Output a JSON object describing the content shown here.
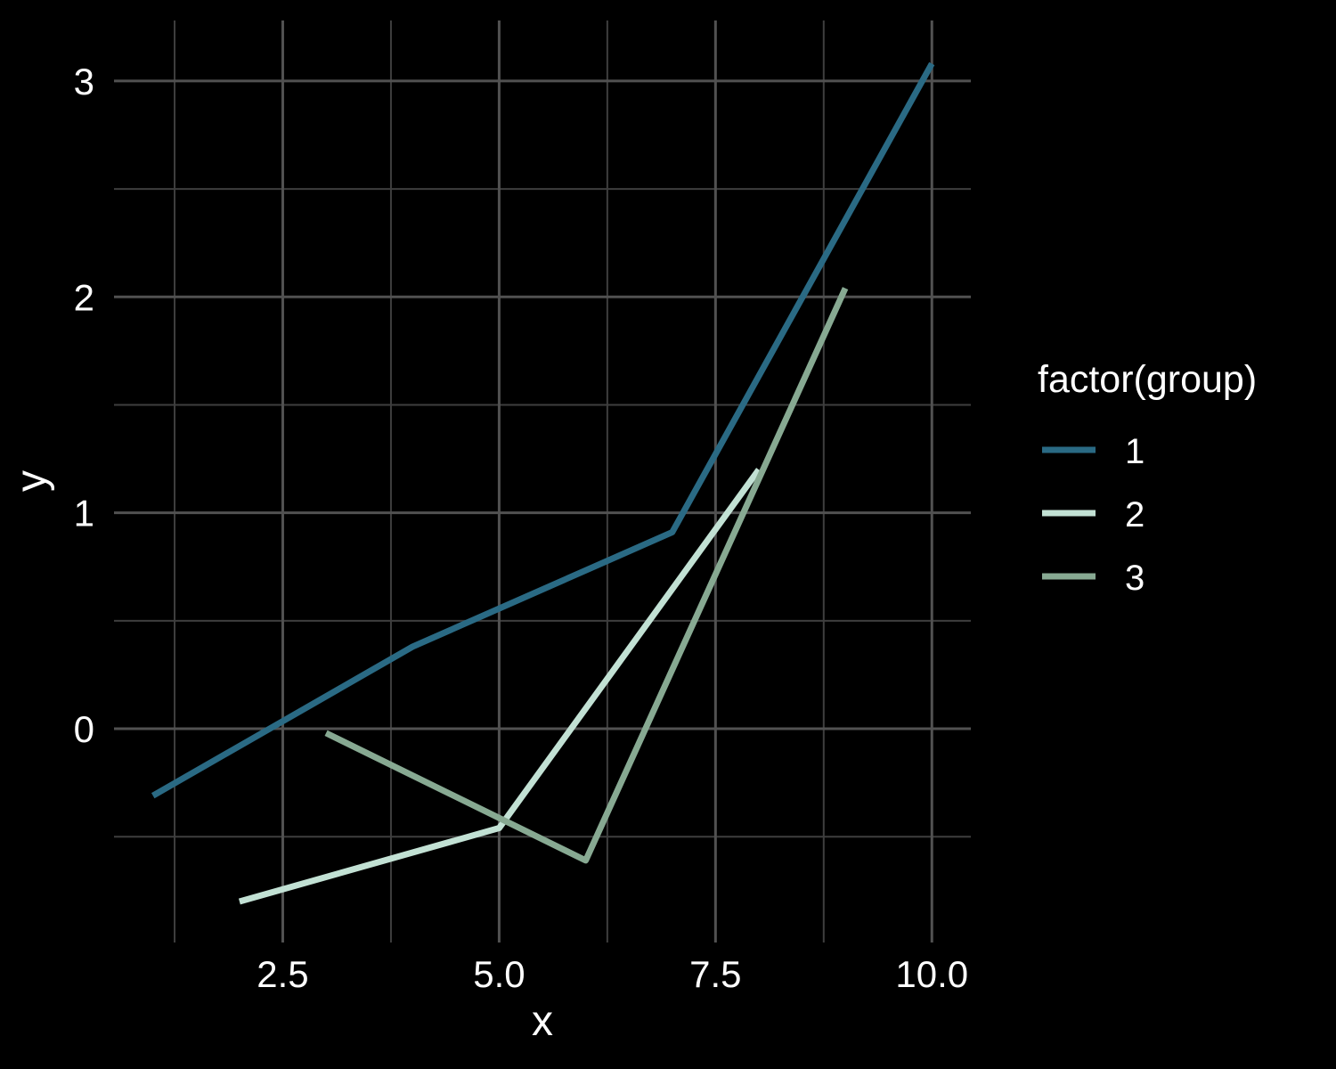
{
  "styles": {
    "background": "#000000",
    "text_color": "#FFFFFF",
    "grid_major_color": "#515151",
    "grid_minor_color": "#3E3E3E"
  },
  "chart_data": {
    "type": "line",
    "title": "",
    "xlabel": "x",
    "ylabel": "y",
    "legend_title": "factor(group)",
    "legend_position": "right",
    "grid": "major+minor",
    "xlim": [
      0.55,
      10.45
    ],
    "ylim": [
      -0.99,
      3.28
    ],
    "x_ticks": [
      2.5,
      5.0,
      7.5,
      10.0
    ],
    "x_tick_labels": [
      "2.5",
      "5.0",
      "7.5",
      "10.0"
    ],
    "x_minor_ticks": [
      1.25,
      3.75,
      6.25,
      8.75
    ],
    "y_ticks": [
      0,
      1,
      2,
      3
    ],
    "y_tick_labels": [
      "0",
      "1",
      "2",
      "3"
    ],
    "y_minor_ticks": [
      -0.5,
      0.5,
      1.5,
      2.5
    ],
    "series": [
      {
        "name": "1",
        "color": "#2A6A84",
        "x": [
          1,
          4,
          7,
          10
        ],
        "y": [
          -0.31,
          0.38,
          0.91,
          3.08
        ]
      },
      {
        "name": "2",
        "color": "#C2E1D4",
        "x": [
          2,
          5,
          8
        ],
        "y": [
          -0.8,
          -0.46,
          1.2
        ]
      },
      {
        "name": "3",
        "color": "#87A992",
        "x": [
          3,
          6,
          9
        ],
        "y": [
          -0.02,
          -0.61,
          2.04
        ]
      }
    ]
  }
}
